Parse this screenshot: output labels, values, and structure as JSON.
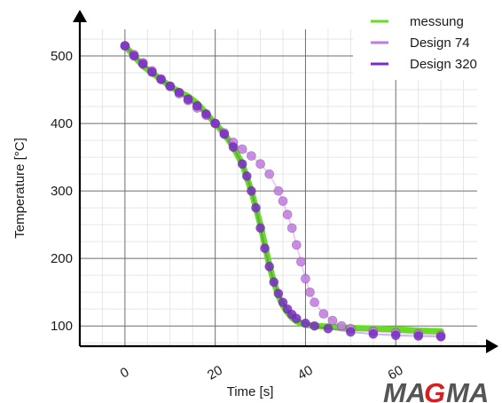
{
  "chart_data": {
    "type": "scatter",
    "xlabel": "Time [s]",
    "ylabel": "Temperature [°C]",
    "xlim": [
      -10,
      80
    ],
    "ylim": [
      70,
      550
    ],
    "x_ticks": [
      "0",
      "20",
      "40",
      "60"
    ],
    "y_ticks": [
      "100",
      "200",
      "300",
      "400",
      "500"
    ],
    "grid": true,
    "legend_position": "top-right",
    "series": [
      {
        "name": "messung",
        "color": "#66dd22",
        "marker": "line",
        "x": [
          0,
          2,
          4,
          6,
          8,
          10,
          12,
          14,
          16,
          18,
          20,
          22,
          24,
          26,
          27,
          28,
          29,
          30,
          31,
          32,
          33,
          34,
          35,
          36,
          37,
          38,
          39,
          40,
          42,
          45,
          50,
          55,
          60,
          65,
          70
        ],
        "y": [
          515,
          500,
          485,
          475,
          465,
          455,
          447,
          440,
          430,
          415,
          400,
          385,
          365,
          340,
          320,
          300,
          275,
          250,
          220,
          190,
          165,
          145,
          130,
          120,
          112,
          107,
          104,
          102,
          100,
          99,
          97,
          96,
          95,
          93,
          92
        ]
      },
      {
        "name": "Design 74",
        "color": "#c37ae0",
        "marker": "circle",
        "x": [
          0,
          2,
          4,
          6,
          8,
          10,
          12,
          14,
          16,
          18,
          20,
          22,
          24,
          26,
          28,
          30,
          32,
          34,
          35,
          36,
          37,
          38,
          39,
          40,
          41,
          42,
          44,
          46,
          48,
          50,
          55,
          60,
          65,
          70
        ],
        "y": [
          515,
          502,
          490,
          478,
          466,
          455,
          444,
          434,
          423,
          412,
          400,
          386,
          372,
          362,
          352,
          340,
          325,
          300,
          285,
          265,
          245,
          220,
          195,
          170,
          150,
          135,
          118,
          108,
          100,
          96,
          92,
          90,
          88,
          86
        ]
      },
      {
        "name": "Design 320",
        "color": "#7a2bc8",
        "marker": "circle",
        "x": [
          0,
          2,
          4,
          6,
          8,
          10,
          12,
          14,
          16,
          18,
          20,
          22,
          24,
          26,
          27,
          28,
          29,
          30,
          31,
          32,
          33,
          34,
          35,
          36,
          37,
          38,
          40,
          42,
          45,
          50,
          55,
          60,
          65,
          70
        ],
        "y": [
          515,
          500,
          488,
          476,
          465,
          455,
          446,
          436,
          426,
          414,
          400,
          384,
          365,
          340,
          322,
          300,
          275,
          245,
          215,
          188,
          165,
          148,
          135,
          125,
          117,
          111,
          104,
          100,
          96,
          91,
          88,
          86,
          85,
          84
        ]
      }
    ]
  },
  "logo": {
    "text": "MAGMA",
    "colors": {
      "main": "#555555",
      "accent": "#d42020"
    }
  }
}
